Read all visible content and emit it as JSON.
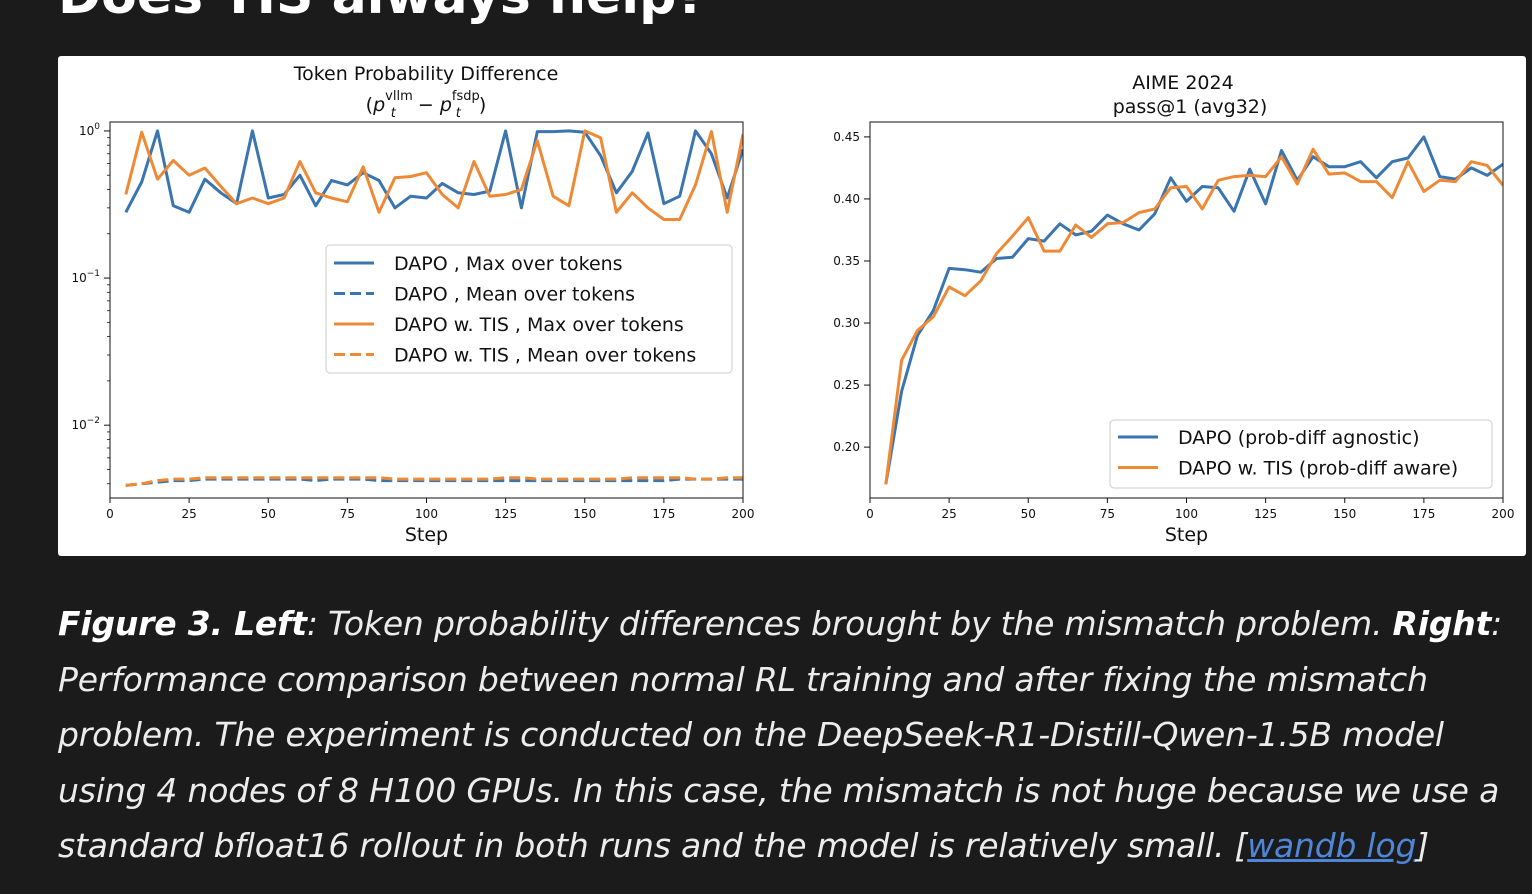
{
  "page": {
    "heading": "Does TIS always help?"
  },
  "chart_data": [
    {
      "type": "line",
      "title": "Token Probability Difference",
      "subtitle": {
        "open": "(",
        "p1": "p",
        "sub1": "t",
        "sup1": "vllm",
        "minus": " − ",
        "p2": "p",
        "sub2": "t",
        "sup2": "fsdp",
        "close": ")"
      },
      "xlabel": "Step",
      "ylabel": "",
      "yscale": "log",
      "xlim": [
        0,
        200
      ],
      "ylim": [
        0.0032,
        1.15
      ],
      "xticks": [
        "0",
        "25",
        "50",
        "75",
        "100",
        "125",
        "150",
        "175",
        "200"
      ],
      "yticks": [
        {
          "value": 1,
          "base": "10",
          "exp": "0"
        },
        {
          "value": 0.1,
          "base": "10",
          "exp": "−1"
        },
        {
          "value": 0.01,
          "base": "10",
          "exp": "−2"
        }
      ],
      "legend_position": "center-right",
      "x": [
        5,
        10,
        15,
        20,
        25,
        30,
        35,
        40,
        45,
        50,
        55,
        60,
        65,
        70,
        75,
        80,
        85,
        90,
        95,
        100,
        105,
        110,
        115,
        120,
        125,
        130,
        135,
        140,
        145,
        150,
        155,
        160,
        165,
        170,
        175,
        180,
        185,
        190,
        195,
        200
      ],
      "series": [
        {
          "name": "DAPO , Max over tokens",
          "color": "#3a75b0",
          "style": "solid",
          "values": [
            0.28,
            0.45,
            1.0,
            0.31,
            0.28,
            0.47,
            0.38,
            0.32,
            1.0,
            0.35,
            0.37,
            0.5,
            0.31,
            0.46,
            0.43,
            0.52,
            0.46,
            0.3,
            0.36,
            0.35,
            0.44,
            0.38,
            0.37,
            0.39,
            1.0,
            0.3,
            0.99,
            0.99,
            1.0,
            0.98,
            0.68,
            0.38,
            0.53,
            0.97,
            0.32,
            0.36,
            1.0,
            0.7,
            0.35,
            0.75
          ]
        },
        {
          "name": "DAPO , Mean over tokens",
          "color": "#3a75b0",
          "style": "dashed",
          "values": [
            0.0039,
            0.004,
            0.0041,
            0.0042,
            0.0042,
            0.0043,
            0.0043,
            0.0043,
            0.0043,
            0.0043,
            0.0043,
            0.0043,
            0.0042,
            0.0043,
            0.0043,
            0.0043,
            0.0042,
            0.0042,
            0.0042,
            0.0042,
            0.0042,
            0.0042,
            0.0042,
            0.0042,
            0.0042,
            0.0042,
            0.0042,
            0.0042,
            0.0042,
            0.0042,
            0.0042,
            0.0042,
            0.0042,
            0.0042,
            0.0042,
            0.0043,
            0.0043,
            0.0043,
            0.0043,
            0.0043
          ]
        },
        {
          "name": "DAPO w. TIS , Max over tokens",
          "color": "#ee8a36",
          "style": "solid",
          "values": [
            0.37,
            0.98,
            0.47,
            0.63,
            0.5,
            0.56,
            0.42,
            0.32,
            0.35,
            0.32,
            0.35,
            0.62,
            0.38,
            0.35,
            0.33,
            0.57,
            0.28,
            0.48,
            0.49,
            0.52,
            0.37,
            0.3,
            0.62,
            0.36,
            0.37,
            0.4,
            0.86,
            0.36,
            0.31,
            1.0,
            0.9,
            0.28,
            0.38,
            0.3,
            0.25,
            0.25,
            0.43,
            0.99,
            0.28,
            0.95
          ]
        },
        {
          "name": "DAPO w. TIS , Mean over tokens",
          "color": "#ee8a36",
          "style": "dashed",
          "values": [
            0.0039,
            0.004,
            0.0042,
            0.0043,
            0.0043,
            0.0044,
            0.0044,
            0.0044,
            0.0044,
            0.0044,
            0.0044,
            0.0044,
            0.0044,
            0.0044,
            0.0044,
            0.0044,
            0.0044,
            0.0043,
            0.0043,
            0.0043,
            0.0043,
            0.0043,
            0.0043,
            0.0043,
            0.0044,
            0.0044,
            0.0043,
            0.0043,
            0.0043,
            0.0043,
            0.0043,
            0.0043,
            0.0044,
            0.0044,
            0.0044,
            0.0044,
            0.0043,
            0.0043,
            0.0044,
            0.0044
          ]
        }
      ]
    },
    {
      "type": "line",
      "title": "AIME 2024",
      "subtitle": "pass@1 (avg32)",
      "xlabel": "Step",
      "ylabel": "",
      "xlim": [
        0,
        200
      ],
      "ylim": [
        0.159,
        0.462
      ],
      "xticks": [
        "0",
        "25",
        "50",
        "75",
        "100",
        "125",
        "150",
        "175",
        "200"
      ],
      "yticks": [
        "0.20",
        "0.25",
        "0.30",
        "0.35",
        "0.40",
        "0.45"
      ],
      "legend_position": "lower-right",
      "x": [
        5,
        10,
        15,
        20,
        25,
        30,
        35,
        40,
        45,
        50,
        55,
        60,
        65,
        70,
        75,
        80,
        85,
        90,
        95,
        100,
        105,
        110,
        115,
        120,
        125,
        130,
        135,
        140,
        145,
        150,
        155,
        160,
        165,
        170,
        175,
        180,
        185,
        190,
        195,
        200
      ],
      "series": [
        {
          "name": "DAPO (prob-diff agnostic)",
          "color": "#3a75b0",
          "values": [
            0.17,
            0.245,
            0.29,
            0.31,
            0.344,
            0.343,
            0.341,
            0.352,
            0.353,
            0.368,
            0.366,
            0.38,
            0.371,
            0.374,
            0.387,
            0.38,
            0.375,
            0.388,
            0.417,
            0.398,
            0.41,
            0.409,
            0.39,
            0.424,
            0.396,
            0.439,
            0.415,
            0.434,
            0.426,
            0.426,
            0.43,
            0.417,
            0.43,
            0.433,
            0.45,
            0.418,
            0.416,
            0.425,
            0.419,
            0.428
          ]
        },
        {
          "name": "DAPO w. TIS (prob-diff aware)",
          "color": "#ee8a36",
          "values": [
            0.17,
            0.27,
            0.294,
            0.305,
            0.329,
            0.322,
            0.334,
            0.356,
            0.37,
            0.385,
            0.358,
            0.358,
            0.379,
            0.369,
            0.38,
            0.381,
            0.389,
            0.392,
            0.409,
            0.41,
            0.392,
            0.415,
            0.418,
            0.419,
            0.418,
            0.434,
            0.412,
            0.44,
            0.42,
            0.421,
            0.414,
            0.414,
            0.401,
            0.43,
            0.406,
            0.415,
            0.414,
            0.43,
            0.427,
            0.411
          ]
        }
      ]
    }
  ],
  "caption": {
    "left_label": "Figure 3. Left",
    "text1": ": Token probability differences brought by the mismatch problem. ",
    "right_label": "Right",
    "text2": ": Performance comparison between normal RL training and after fixing the mismatch problem. The experiment is conducted on the DeepSeek-R1-Distill-Qwen-1.5B model using 4 nodes of 8 H100 GPUs. In this case, the mismatch is not huge because we use a standard bfloat16 rollout in both runs and the model is relatively small. [",
    "link_label": "wandb log",
    "text3": "]"
  }
}
